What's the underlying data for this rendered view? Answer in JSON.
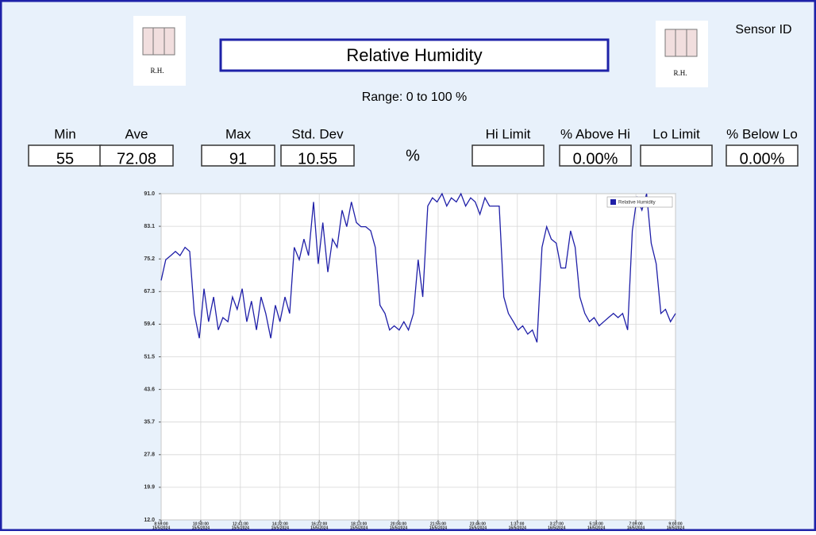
{
  "title": "Relative Humidity",
  "sensor_label": "Sensor ID",
  "logo_text": "R.H.",
  "range": "Range: 0 to 100 %",
  "unit": "%",
  "stats": [
    {
      "label": "Min",
      "value": 55
    },
    {
      "label": "Ave",
      "value": 72.08
    },
    {
      "label": "Max",
      "value": 91
    },
    {
      "label": "Std. Dev",
      "value": 10.55
    }
  ],
  "limits": [
    {
      "label": "Hi Limit"
    },
    {
      "label": "% Above Hi",
      "value": "0.00%"
    },
    {
      "label": "Lo Limit"
    },
    {
      "label": "% Below Lo",
      "value": "0.00%"
    }
  ],
  "chart_data": {
    "type": "line",
    "legend": "upper right",
    "grid": true,
    "ylim": [
      12,
      91
    ],
    "yticks": [
      {
        "value": 12,
        "label": "12.0"
      },
      19.9,
      27.8,
      35.7,
      43.6,
      51.5,
      59.4,
      67.3,
      75.2,
      83.1,
      {
        "value": 91,
        "label": "91.0"
      }
    ],
    "xlim": [
      0,
      1441
    ],
    "xticks": [
      {
        "value": 0,
        "label": "8:59:00",
        "date": "15/5/2024"
      },
      {
        "value": 111,
        "label": "10:50:00",
        "date": "15/5/2024"
      },
      {
        "value": 222,
        "label": "12:41:00",
        "date": "15/5/2024"
      },
      {
        "value": 333,
        "label": "14:32:00",
        "date": "15/5/2024"
      },
      {
        "value": 443,
        "label": "16:22:00",
        "date": "15/5/2024"
      },
      {
        "value": 554,
        "label": "18:13:00",
        "date": "15/5/2024"
      },
      {
        "value": 665,
        "label": "20:04:00",
        "date": "15/5/2024"
      },
      {
        "value": 776,
        "label": "21:55:00",
        "date": "15/5/2024"
      },
      {
        "value": 887,
        "label": "23:46:00",
        "date": "15/5/2024"
      },
      {
        "value": 998,
        "label": "1:37:00",
        "date": "16/5/2024"
      },
      {
        "value": 1108,
        "label": "3:27:00",
        "date": "16/5/2024"
      },
      {
        "value": 1219,
        "label": "5:18:00",
        "date": "16/5/2024"
      },
      {
        "value": 1330,
        "label": "7:09:00",
        "date": "16/5/2024"
      },
      {
        "value": 1441,
        "label": "9:00:00",
        "date": "16/5/2024"
      }
    ],
    "x": [
      0,
      13,
      27,
      40,
      53,
      67,
      80,
      93,
      107,
      120,
      133,
      147,
      160,
      173,
      187,
      200,
      213,
      227,
      240,
      253,
      267,
      280,
      293,
      307,
      320,
      333,
      347,
      360,
      373,
      387,
      400,
      413,
      427,
      440,
      453,
      467,
      480,
      493,
      507,
      520,
      533,
      547,
      560,
      573,
      587,
      600,
      613,
      627,
      640,
      653,
      667,
      680,
      693,
      707,
      720,
      733,
      747,
      760,
      773,
      787,
      800,
      813,
      827,
      840,
      853,
      867,
      880,
      893,
      907,
      920,
      933,
      947,
      960,
      973,
      987,
      1000,
      1013,
      1027,
      1040,
      1053,
      1067,
      1080,
      1093,
      1107,
      1120,
      1133,
      1147,
      1160,
      1173,
      1187,
      1200,
      1213,
      1227,
      1240,
      1253,
      1267,
      1280,
      1293,
      1307,
      1320,
      1333,
      1347,
      1360,
      1373,
      1387,
      1400,
      1413,
      1427,
      1441
    ],
    "series": [
      {
        "name": "Relative Humidity",
        "color": "#1f1fa8",
        "values": [
          70,
          75,
          76,
          77,
          76,
          78,
          77,
          62,
          56,
          68,
          60,
          66,
          58,
          61,
          60,
          66,
          63,
          68,
          60,
          65,
          58,
          66,
          62,
          56,
          64,
          60,
          66,
          62,
          78,
          75,
          80,
          76,
          89,
          74,
          84,
          72,
          80,
          78,
          87,
          83,
          89,
          84,
          83,
          83,
          82,
          78,
          64,
          62,
          58,
          59,
          58,
          60,
          58,
          62,
          75,
          66,
          88,
          90,
          89,
          91,
          88,
          90,
          89,
          91,
          88,
          90,
          89,
          86,
          90,
          88,
          88,
          88,
          66,
          62,
          60,
          58,
          59,
          57,
          58,
          55,
          78,
          83,
          80,
          79,
          73,
          73,
          82,
          78,
          66,
          62,
          60,
          61,
          59,
          60,
          61,
          62,
          61,
          62,
          58,
          82,
          90,
          87,
          91,
          79,
          74,
          62,
          63,
          60,
          62
        ]
      }
    ]
  }
}
